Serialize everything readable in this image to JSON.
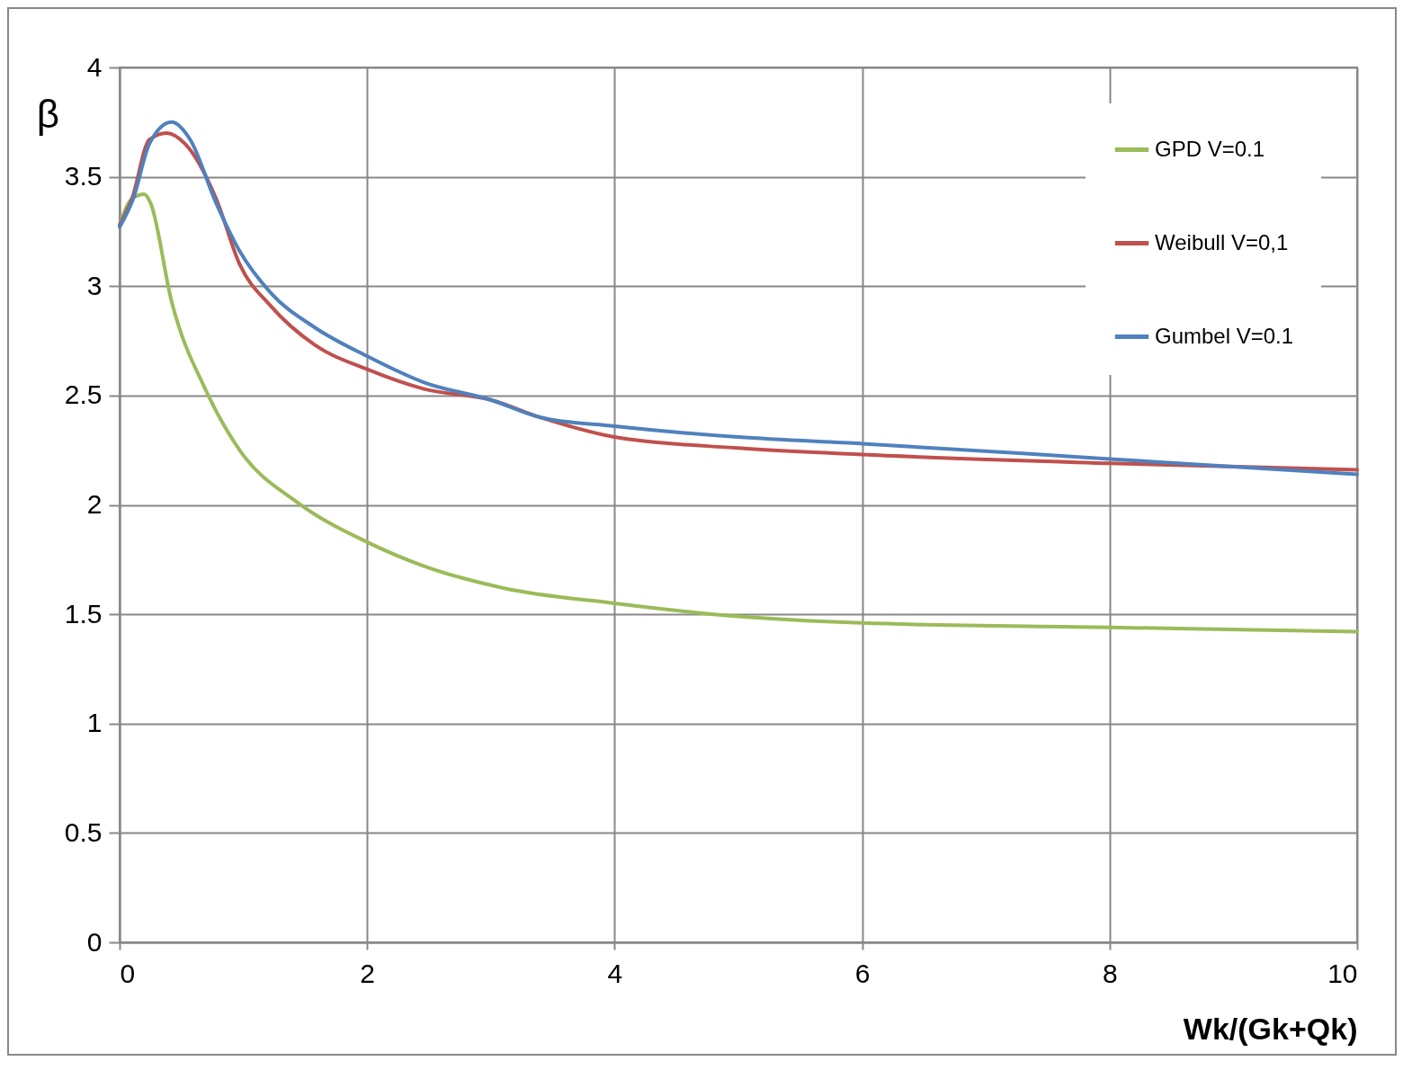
{
  "chart_data": {
    "type": "line",
    "xlabel": "Wk/(Gk+Qk)",
    "ylabel": "β",
    "xlim": [
      0,
      10
    ],
    "xticks": [
      0,
      2,
      4,
      6,
      8,
      10
    ],
    "ylim": [
      0,
      4
    ],
    "yticks": [
      0,
      0.5,
      1,
      1.5,
      2,
      2.5,
      3,
      3.5,
      4
    ],
    "grid": true,
    "legend": "top right",
    "line_style": "solid",
    "marker": "none",
    "series": [
      {
        "name": "GPD V=0.1",
        "color": "#9bbb59",
        "x": [
          0,
          0.1,
          0.2,
          0.25,
          0.42,
          0.7,
          0.97,
          1.44,
          2,
          2.46,
          3.1,
          4,
          5,
          6,
          8,
          10
        ],
        "values": [
          3.28,
          3.4,
          3.42,
          3.38,
          2.93,
          2.52,
          2.25,
          2.01,
          1.83,
          1.72,
          1.62,
          1.55,
          1.49,
          1.46,
          1.44,
          1.42
        ]
      },
      {
        "name": "Weibull V=0,1",
        "color": "#c0504d",
        "x": [
          0,
          0.1,
          0.24,
          0.38,
          0.53,
          0.78,
          0.97,
          1.22,
          1.58,
          2,
          2.46,
          3,
          3.4,
          4,
          5,
          6,
          8,
          10
        ],
        "values": [
          3.28,
          3.4,
          3.67,
          3.7,
          3.65,
          3.4,
          3.1,
          2.91,
          2.73,
          2.62,
          2.53,
          2.48,
          2.4,
          2.31,
          2.26,
          2.23,
          2.19,
          2.16
        ]
      },
      {
        "name": "Gumbel V=0.1",
        "color": "#4f81bd",
        "x": [
          0,
          0.11,
          0.24,
          0.42,
          0.57,
          0.78,
          0.97,
          1.22,
          1.58,
          2,
          2.46,
          3,
          3.4,
          4,
          5,
          6,
          8,
          10
        ],
        "values": [
          3.27,
          3.4,
          3.65,
          3.75,
          3.67,
          3.38,
          3.16,
          2.97,
          2.81,
          2.68,
          2.56,
          2.48,
          2.4,
          2.36,
          2.31,
          2.28,
          2.21,
          2.14
        ]
      }
    ]
  }
}
